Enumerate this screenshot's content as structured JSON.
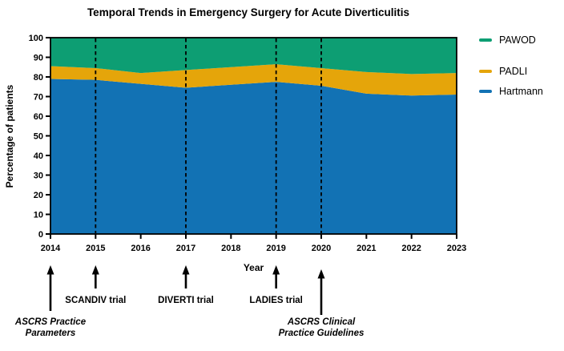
{
  "title": "Temporal Trends in Emergency Surgery for Acute Diverticulitis",
  "legend": [
    {
      "label": "PAWOD",
      "color": "#0d9e73"
    },
    {
      "label": "PADLI",
      "color": "#e5a50a"
    },
    {
      "label": "Hartmann",
      "color": "#1272b4"
    }
  ],
  "chart_data": {
    "type": "area",
    "stacked": true,
    "title": "Temporal Trends in Emergency Surgery for Acute Diverticulitis",
    "x": [
      2014,
      2015,
      2016,
      2017,
      2018,
      2019,
      2020,
      2021,
      2022,
      2023
    ],
    "xlabel": "Year",
    "ylabel": "Percentage of patients",
    "ylim": [
      0,
      100
    ],
    "ytick_step": 10,
    "grid": false,
    "legend_position": "right",
    "series": [
      {
        "name": "Hartmann",
        "color": "#1272b4",
        "values": [
          79,
          78.5,
          76.5,
          74.5,
          76,
          77.5,
          75.5,
          71.5,
          70.5,
          71
        ]
      },
      {
        "name": "PADLI",
        "color": "#e5a50a",
        "values": [
          6.5,
          6,
          5.5,
          9,
          9,
          9,
          9,
          11,
          11,
          11
        ]
      },
      {
        "name": "PAWOD",
        "color": "#0d9e73",
        "values": [
          14.5,
          15.5,
          18,
          16.5,
          15,
          13.5,
          15.5,
          17.5,
          18.5,
          18
        ]
      }
    ],
    "dashed_lines_at": [
      2015,
      2017,
      2019,
      2020
    ]
  },
  "annotations": [
    {
      "year": 2014,
      "label": "ASCRS Practice\nParameters",
      "style": "italic",
      "arrow": "long"
    },
    {
      "year": 2015,
      "label": "SCANDIV trial",
      "style": "normal",
      "arrow": "short"
    },
    {
      "year": 2017,
      "label": "DIVERTI trial",
      "style": "normal",
      "arrow": "short"
    },
    {
      "year": 2019,
      "label": "LADIES trial",
      "style": "normal",
      "arrow": "short"
    },
    {
      "year": 2020,
      "label": "ASCRS Clinical\nPractice Guidelines",
      "style": "italic",
      "arrow": "long"
    }
  ]
}
